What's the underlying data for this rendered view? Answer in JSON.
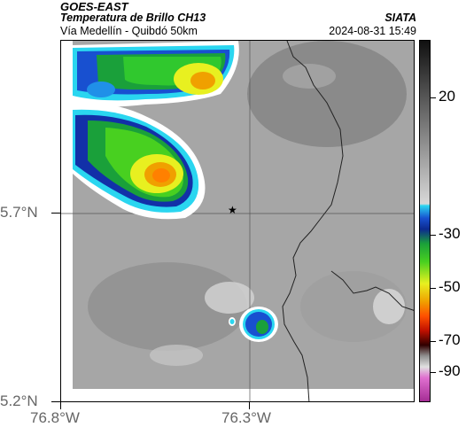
{
  "header": {
    "satellite": "GOES-EAST",
    "product": "Temperatura de Brillo CH13",
    "region": "Vía Medellín - Quibdó 50km",
    "agency": "SIATA",
    "datetime": "2024-08-31 15:49"
  },
  "axes": {
    "y_labels": [
      "5.7°N",
      "5.2°N"
    ],
    "x_labels": [
      "76.8°W",
      "76.3°W"
    ]
  },
  "colorbar": {
    "labels": [
      "20",
      "-30",
      "-50",
      "-70",
      "-90"
    ]
  },
  "marker": {
    "symbol": "★"
  }
}
